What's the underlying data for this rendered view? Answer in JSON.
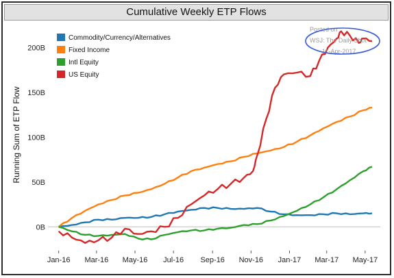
{
  "chart_data": {
    "type": "line",
    "title": "Cumulative Weekly ETP Flows",
    "ylabel": "Running Sum of ETP Flow",
    "xlabel": "",
    "ylim": [
      -25,
      230
    ],
    "y_ticks": [
      {
        "value": 0,
        "label": "0B"
      },
      {
        "value": 50,
        "label": "50B"
      },
      {
        "value": 100,
        "label": "100B"
      },
      {
        "value": 150,
        "label": "150B"
      },
      {
        "value": 200,
        "label": "200B"
      }
    ],
    "x_ticks": [
      "Jan-16",
      "Mar-16",
      "May-16",
      "Jul-16",
      "Sep-16",
      "Nov-16",
      "Jan-17",
      "Mar-17",
      "May-17"
    ],
    "x_range": [
      "2015-12-15",
      "2017-05-25"
    ],
    "grid": false,
    "legend_position": "top-left",
    "watermark": [
      "Posted on",
      "WSJ: The Daily Shot",
      "11-Apr-2017"
    ],
    "series": [
      {
        "name": "Commodity/Currency/Alternatives",
        "color": "#1f77b4",
        "points": [
          [
            "2016-01-01",
            0
          ],
          [
            "2016-01-22",
            2
          ],
          [
            "2016-02-12",
            5
          ],
          [
            "2016-03-04",
            8
          ],
          [
            "2016-03-25",
            8
          ],
          [
            "2016-04-15",
            10
          ],
          [
            "2016-05-06",
            10
          ],
          [
            "2016-05-27",
            11
          ],
          [
            "2016-06-17",
            14
          ],
          [
            "2016-07-08",
            17
          ],
          [
            "2016-07-29",
            19
          ],
          [
            "2016-08-19",
            21
          ],
          [
            "2016-09-09",
            21
          ],
          [
            "2016-09-30",
            20
          ],
          [
            "2016-10-21",
            20
          ],
          [
            "2016-11-11",
            21
          ],
          [
            "2016-12-02",
            17
          ],
          [
            "2016-12-23",
            14
          ],
          [
            "2017-01-13",
            13
          ],
          [
            "2017-02-03",
            13
          ],
          [
            "2017-02-24",
            14
          ],
          [
            "2017-03-17",
            15
          ],
          [
            "2017-04-07",
            14
          ],
          [
            "2017-04-28",
            15
          ],
          [
            "2017-05-12",
            15
          ]
        ]
      },
      {
        "name": "Fixed Income",
        "color": "#ff7f0e",
        "points": [
          [
            "2016-01-01",
            0
          ],
          [
            "2016-01-22",
            10
          ],
          [
            "2016-02-12",
            18
          ],
          [
            "2016-03-04",
            25
          ],
          [
            "2016-03-25",
            30
          ],
          [
            "2016-04-15",
            35
          ],
          [
            "2016-05-06",
            38
          ],
          [
            "2016-05-27",
            42
          ],
          [
            "2016-06-17",
            48
          ],
          [
            "2016-07-08",
            55
          ],
          [
            "2016-07-29",
            62
          ],
          [
            "2016-08-19",
            66
          ],
          [
            "2016-09-09",
            70
          ],
          [
            "2016-09-30",
            73
          ],
          [
            "2016-10-21",
            78
          ],
          [
            "2016-11-11",
            82
          ],
          [
            "2016-12-02",
            85
          ],
          [
            "2016-12-23",
            89
          ],
          [
            "2017-01-13",
            95
          ],
          [
            "2017-02-03",
            102
          ],
          [
            "2017-02-24",
            110
          ],
          [
            "2017-03-17",
            117
          ],
          [
            "2017-04-07",
            123
          ],
          [
            "2017-04-28",
            130
          ],
          [
            "2017-05-12",
            133
          ]
        ]
      },
      {
        "name": "Intl Equity",
        "color": "#2ca02c",
        "points": [
          [
            "2016-01-01",
            0
          ],
          [
            "2016-01-22",
            -5
          ],
          [
            "2016-02-12",
            -9
          ],
          [
            "2016-03-04",
            -10
          ],
          [
            "2016-03-25",
            -9
          ],
          [
            "2016-04-15",
            -8
          ],
          [
            "2016-05-06",
            -13
          ],
          [
            "2016-05-27",
            -14
          ],
          [
            "2016-06-17",
            -9
          ],
          [
            "2016-07-08",
            -6
          ],
          [
            "2016-07-29",
            -4
          ],
          [
            "2016-08-19",
            -4
          ],
          [
            "2016-09-09",
            -2
          ],
          [
            "2016-09-30",
            -1
          ],
          [
            "2016-10-21",
            2
          ],
          [
            "2016-11-11",
            3
          ],
          [
            "2016-12-02",
            7
          ],
          [
            "2016-12-23",
            12
          ],
          [
            "2017-01-13",
            18
          ],
          [
            "2017-02-03",
            25
          ],
          [
            "2017-02-24",
            33
          ],
          [
            "2017-03-17",
            42
          ],
          [
            "2017-04-07",
            52
          ],
          [
            "2017-04-28",
            62
          ],
          [
            "2017-05-12",
            67
          ]
        ]
      },
      {
        "name": "US Equity",
        "color": "#d62728",
        "points": [
          [
            "2016-01-01",
            -5
          ],
          [
            "2016-01-22",
            -12
          ],
          [
            "2016-02-12",
            -18
          ],
          [
            "2016-03-04",
            -15
          ],
          [
            "2016-03-25",
            -12
          ],
          [
            "2016-04-15",
            -2
          ],
          [
            "2016-05-06",
            -8
          ],
          [
            "2016-05-27",
            -5
          ],
          [
            "2016-06-17",
            0
          ],
          [
            "2016-07-08",
            10
          ],
          [
            "2016-07-29",
            25
          ],
          [
            "2016-08-19",
            35
          ],
          [
            "2016-09-09",
            42
          ],
          [
            "2016-09-30",
            48
          ],
          [
            "2016-10-21",
            55
          ],
          [
            "2016-11-04",
            62
          ],
          [
            "2016-11-11",
            80
          ],
          [
            "2016-11-25",
            120
          ],
          [
            "2016-12-09",
            155
          ],
          [
            "2016-12-23",
            170
          ],
          [
            "2017-01-13",
            172
          ],
          [
            "2017-02-03",
            168
          ],
          [
            "2017-02-17",
            185
          ],
          [
            "2017-03-03",
            200
          ],
          [
            "2017-03-17",
            210
          ],
          [
            "2017-03-24",
            218
          ],
          [
            "2017-04-07",
            213
          ],
          [
            "2017-04-21",
            205
          ],
          [
            "2017-04-28",
            210
          ],
          [
            "2017-05-12",
            207
          ]
        ]
      }
    ]
  }
}
